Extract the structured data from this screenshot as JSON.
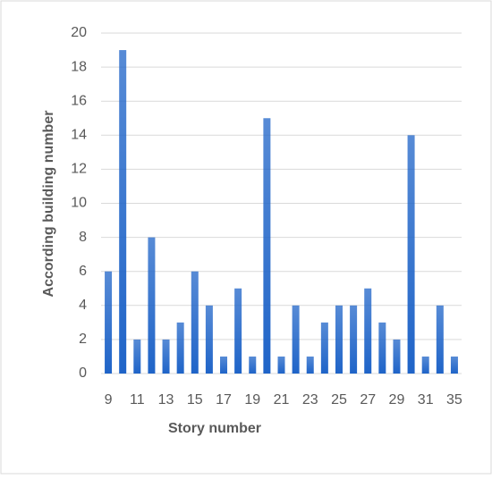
{
  "chart_data": {
    "type": "bar",
    "xlabel": "Story number",
    "ylabel": "According building number",
    "categories": [
      "9",
      null,
      "11",
      null,
      "13",
      null,
      "15",
      null,
      "17",
      null,
      "19",
      null,
      "21",
      null,
      "23",
      null,
      "25",
      null,
      "27",
      null,
      "29",
      null,
      "31",
      null,
      "35"
    ],
    "values": [
      6,
      19,
      2,
      8,
      2,
      3,
      6,
      4,
      1,
      5,
      1,
      15,
      1,
      4,
      1,
      3,
      4,
      4,
      5,
      3,
      2,
      14,
      1,
      4,
      1
    ],
    "color": "#1f64c8",
    "ylim": [
      0,
      20
    ],
    "yticks": [
      0,
      2,
      4,
      6,
      8,
      10,
      12,
      14,
      16,
      18,
      20
    ],
    "grid": true
  }
}
